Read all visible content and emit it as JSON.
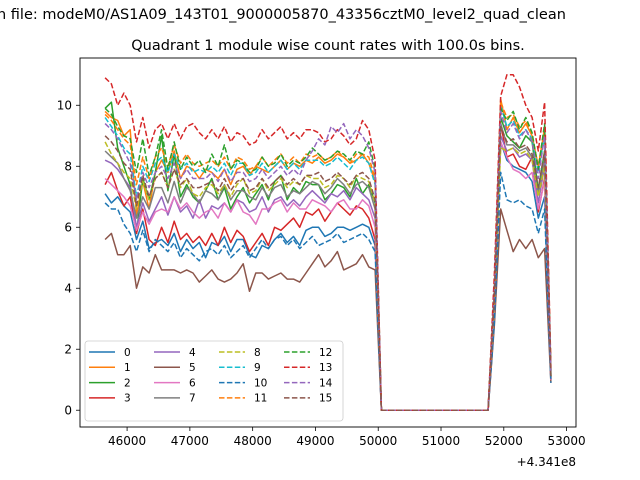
{
  "chart_data": {
    "type": "line",
    "suptitle": "n file: modeM0/AS1A09_143T01_9000005870_43356cztM0_level2_quad_clean",
    "title": "Quadrant 1 module wise count rates with 100.0s bins.",
    "xlabel": "",
    "ylabel": "",
    "x_offset_label": "+4.341e8",
    "xlim": [
      45250,
      53150
    ],
    "ylim": [
      -0.55,
      11.55
    ],
    "x_ticks": [
      46000,
      47000,
      48000,
      49000,
      50000,
      51000,
      52000,
      53000
    ],
    "y_ticks": [
      0,
      2,
      4,
      6,
      8,
      10
    ],
    "legend_loc": "lower-left",
    "legend_ncol": 4,
    "x": [
      45650,
      45750,
      45850,
      45950,
      46050,
      46150,
      46250,
      46350,
      46450,
      46550,
      46650,
      46750,
      46850,
      46950,
      47050,
      47150,
      47250,
      47350,
      47450,
      47550,
      47650,
      47750,
      47850,
      47950,
      48050,
      48150,
      48250,
      48350,
      48450,
      48550,
      48650,
      48750,
      48850,
      48950,
      49050,
      49150,
      49250,
      49350,
      49450,
      49550,
      49650,
      49750,
      49850,
      49950,
      50050,
      50150,
      51750,
      51850,
      51950,
      52050,
      52150,
      52250,
      52350,
      52450,
      52550,
      52650,
      52750
    ],
    "series": [
      {
        "name": "0",
        "color": "#1f77b4",
        "dash": "solid",
        "values": [
          7.1,
          6.8,
          7.0,
          6.7,
          6.5,
          5.6,
          6.2,
          5.3,
          5.5,
          5.6,
          5.4,
          5.8,
          5.2,
          5.6,
          5.3,
          5.5,
          5.0,
          5.5,
          5.4,
          5.7,
          5.2,
          5.6,
          5.6,
          5.1,
          5.0,
          5.4,
          5.3,
          5.6,
          5.8,
          5.5,
          5.7,
          5.4,
          5.9,
          6.0,
          6.0,
          5.7,
          5.8,
          6.0,
          6.0,
          5.9,
          6.0,
          6.1,
          6.0,
          5.4,
          0.0,
          0.0,
          0.0,
          3.0,
          8.8,
          8.2,
          8.0,
          7.9,
          7.8,
          7.5,
          6.3,
          7.0,
          1.0
        ]
      },
      {
        "name": "1",
        "color": "#ff7f0e",
        "dash": "solid",
        "values": [
          9.8,
          9.6,
          9.5,
          9.0,
          9.2,
          6.4,
          7.5,
          6.6,
          7.8,
          8.2,
          7.8,
          8.5,
          7.6,
          8.0,
          7.9,
          7.6,
          7.9,
          7.8,
          7.6,
          7.9,
          7.4,
          7.9,
          8.0,
          7.7,
          8.0,
          7.9,
          7.8,
          8.0,
          8.2,
          7.9,
          8.1,
          8.0,
          8.2,
          8.1,
          8.3,
          8.1,
          8.2,
          8.4,
          8.3,
          8.1,
          8.2,
          8.4,
          8.1,
          7.5,
          0.0,
          0.0,
          0.0,
          4.0,
          10.2,
          9.2,
          9.6,
          9.1,
          9.4,
          9.0,
          8.0,
          9.2,
          1.3
        ]
      },
      {
        "name": "2",
        "color": "#2ca02c",
        "dash": "solid",
        "values": [
          9.9,
          10.1,
          8.6,
          8.0,
          7.4,
          5.8,
          7.6,
          6.9,
          7.8,
          9.0,
          7.2,
          8.4,
          7.0,
          7.4,
          7.0,
          6.8,
          7.2,
          7.6,
          6.9,
          7.3,
          6.6,
          7.0,
          7.3,
          6.8,
          7.1,
          7.4,
          6.9,
          7.5,
          7.7,
          6.9,
          7.3,
          7.1,
          7.5,
          7.4,
          7.4,
          6.9,
          7.1,
          7.4,
          7.3,
          7.0,
          7.6,
          7.1,
          7.4,
          6.8,
          0.0,
          0.0,
          0.0,
          3.5,
          9.6,
          9.0,
          8.8,
          8.6,
          9.0,
          8.8,
          7.2,
          8.5,
          1.1
        ]
      },
      {
        "name": "3",
        "color": "#d62728",
        "dash": "solid",
        "values": [
          7.4,
          7.8,
          7.2,
          6.7,
          7.0,
          5.8,
          6.6,
          5.6,
          5.4,
          6.0,
          5.5,
          6.2,
          5.6,
          5.8,
          5.5,
          5.7,
          5.4,
          5.8,
          5.4,
          6.0,
          5.5,
          5.9,
          5.7,
          5.2,
          5.5,
          5.8,
          5.4,
          6.0,
          5.9,
          6.1,
          6.3,
          6.0,
          6.5,
          6.4,
          6.6,
          6.2,
          6.5,
          6.8,
          6.6,
          6.4,
          6.7,
          6.6,
          6.3,
          5.6,
          0.0,
          0.0,
          0.0,
          3.2,
          9.4,
          8.3,
          8.4,
          8.0,
          7.9,
          8.3,
          6.5,
          7.6,
          1.0
        ]
      },
      {
        "name": "4",
        "color": "#9467bd",
        "dash": "solid",
        "values": [
          8.2,
          8.1,
          7.9,
          7.6,
          7.3,
          6.0,
          6.8,
          6.2,
          6.6,
          7.0,
          6.4,
          7.0,
          6.5,
          6.7,
          6.3,
          6.9,
          6.3,
          6.7,
          6.6,
          6.8,
          6.5,
          6.9,
          6.8,
          6.5,
          6.6,
          7.0,
          6.5,
          6.9,
          7.0,
          6.7,
          6.9,
          6.7,
          7.0,
          7.2,
          7.0,
          6.8,
          7.1,
          7.0,
          7.2,
          6.9,
          7.3,
          7.1,
          6.9,
          6.3,
          0.0,
          0.0,
          0.0,
          3.4,
          9.0,
          8.5,
          8.6,
          8.3,
          8.4,
          8.2,
          6.8,
          8.0,
          1.0
        ]
      },
      {
        "name": "5",
        "color": "#8c564b",
        "dash": "solid",
        "values": [
          5.6,
          5.8,
          5.1,
          5.1,
          5.4,
          4.0,
          4.7,
          4.5,
          5.1,
          4.6,
          4.6,
          4.6,
          4.5,
          4.6,
          4.5,
          4.2,
          4.4,
          4.6,
          4.3,
          4.2,
          4.3,
          4.5,
          4.8,
          3.9,
          4.5,
          4.5,
          4.3,
          4.4,
          4.5,
          4.3,
          4.3,
          4.2,
          4.5,
          4.8,
          5.1,
          4.7,
          4.9,
          5.2,
          4.6,
          4.7,
          4.8,
          5.1,
          4.7,
          4.6,
          0.0,
          0.0,
          0.0,
          2.8,
          6.6,
          5.9,
          5.2,
          5.6,
          5.3,
          5.6,
          5.0,
          5.3,
          0.9
        ]
      },
      {
        "name": "6",
        "color": "#e377c2",
        "dash": "solid",
        "values": [
          7.6,
          7.4,
          7.2,
          7.0,
          6.7,
          5.9,
          6.5,
          6.1,
          6.5,
          6.6,
          6.5,
          7.0,
          6.6,
          6.8,
          6.5,
          6.3,
          6.5,
          6.6,
          6.3,
          6.8,
          6.5,
          6.9,
          6.5,
          6.4,
          6.1,
          6.6,
          6.6,
          6.8,
          6.9,
          6.5,
          6.8,
          6.6,
          6.6,
          6.9,
          6.8,
          6.7,
          6.5,
          6.8,
          6.9,
          6.6,
          6.6,
          6.9,
          6.7,
          6.0,
          0.0,
          0.0,
          0.0,
          3.3,
          8.8,
          8.3,
          7.9,
          7.8,
          7.6,
          7.8,
          6.6,
          7.5,
          1.0
        ]
      },
      {
        "name": "7",
        "color": "#7f7f7f",
        "dash": "solid",
        "values": [
          8.5,
          8.3,
          8.1,
          7.6,
          7.2,
          6.3,
          7.0,
          6.6,
          7.3,
          7.3,
          6.8,
          7.5,
          6.8,
          7.3,
          7.1,
          6.8,
          7.2,
          7.1,
          6.9,
          7.4,
          6.9,
          7.2,
          7.2,
          7.0,
          6.9,
          7.3,
          7.0,
          7.3,
          7.4,
          7.0,
          7.2,
          7.1,
          7.3,
          7.5,
          7.4,
          7.1,
          7.3,
          7.6,
          7.4,
          7.1,
          7.4,
          7.5,
          7.3,
          6.6,
          0.0,
          0.0,
          0.0,
          3.5,
          9.4,
          8.7,
          8.7,
          8.5,
          8.6,
          8.3,
          7.1,
          8.2,
          1.1
        ]
      },
      {
        "name": "8",
        "color": "#bcbd22",
        "dash": "dashed",
        "values": [
          8.8,
          8.4,
          8.1,
          7.8,
          7.6,
          6.6,
          7.5,
          6.9,
          7.6,
          7.8,
          7.3,
          7.9,
          7.3,
          7.6,
          7.1,
          7.0,
          7.3,
          7.4,
          7.1,
          7.4,
          7.0,
          7.4,
          7.6,
          7.1,
          7.2,
          7.6,
          7.2,
          7.4,
          7.6,
          7.3,
          7.5,
          7.4,
          7.7,
          7.6,
          7.6,
          7.3,
          7.4,
          7.7,
          7.6,
          7.3,
          7.7,
          7.6,
          7.5,
          6.8,
          0.0,
          0.0,
          0.0,
          3.6,
          8.6,
          8.5,
          8.6,
          8.4,
          8.5,
          8.2,
          7.0,
          8.0,
          1.1
        ]
      },
      {
        "name": "9",
        "color": "#17becf",
        "dash": "dashed",
        "values": [
          9.6,
          9.3,
          9.0,
          8.6,
          8.4,
          7.0,
          8.0,
          7.5,
          8.1,
          8.3,
          7.8,
          8.4,
          7.9,
          8.1,
          7.8,
          7.9,
          7.8,
          8.0,
          7.8,
          8.1,
          7.7,
          8.1,
          8.1,
          7.7,
          7.8,
          8.1,
          7.8,
          8.0,
          8.2,
          7.9,
          8.1,
          7.9,
          8.2,
          8.2,
          8.2,
          8.0,
          8.1,
          8.3,
          8.1,
          7.9,
          8.2,
          8.3,
          8.1,
          7.4,
          0.0,
          0.0,
          0.0,
          3.9,
          10.0,
          9.3,
          9.5,
          9.0,
          9.2,
          8.9,
          7.8,
          9.0,
          1.2
        ]
      },
      {
        "name": "10",
        "color": "#1f77b4",
        "dash": "dashed",
        "values": [
          6.8,
          6.6,
          6.6,
          6.1,
          5.8,
          5.2,
          5.9,
          5.2,
          5.6,
          5.4,
          5.2,
          5.5,
          5.0,
          5.3,
          5.1,
          4.9,
          5.2,
          5.3,
          5.1,
          5.4,
          5.0,
          5.2,
          5.4,
          5.0,
          5.3,
          5.6,
          5.3,
          5.6,
          5.7,
          5.4,
          5.6,
          5.3,
          5.5,
          5.7,
          5.4,
          5.5,
          5.6,
          5.8,
          5.5,
          5.6,
          5.7,
          5.8,
          5.6,
          5.2,
          0.0,
          0.0,
          0.0,
          2.9,
          7.8,
          6.9,
          6.8,
          6.9,
          6.7,
          6.6,
          5.8,
          6.6,
          0.9
        ]
      },
      {
        "name": "11",
        "color": "#ff7f0e",
        "dash": "dashed",
        "values": [
          9.7,
          9.5,
          9.2,
          8.9,
          8.7,
          7.4,
          8.3,
          7.6,
          8.3,
          8.6,
          8.0,
          8.7,
          8.1,
          8.4,
          8.1,
          8.0,
          8.1,
          8.2,
          8.0,
          8.3,
          7.9,
          8.3,
          8.2,
          7.9,
          8.0,
          8.3,
          8.0,
          8.2,
          8.4,
          8.1,
          8.3,
          8.1,
          8.4,
          8.3,
          8.4,
          8.2,
          8.3,
          8.5,
          8.3,
          8.1,
          8.4,
          8.4,
          8.3,
          7.6,
          0.0,
          0.0,
          0.0,
          4.0,
          10.1,
          9.6,
          9.7,
          9.3,
          9.5,
          9.0,
          8.0,
          9.3,
          1.3
        ]
      },
      {
        "name": "12",
        "color": "#2ca02c",
        "dash": "dashed",
        "values": [
          9.9,
          9.7,
          9.3,
          9.0,
          8.9,
          7.8,
          8.9,
          7.7,
          8.3,
          9.2,
          7.9,
          8.8,
          7.9,
          8.3,
          8.0,
          8.2,
          7.8,
          8.4,
          8.0,
          8.7,
          7.9,
          8.2,
          8.1,
          7.8,
          7.9,
          8.3,
          8.0,
          8.1,
          8.4,
          8.0,
          8.2,
          8.1,
          8.3,
          8.6,
          8.4,
          8.2,
          8.3,
          8.5,
          8.4,
          8.2,
          8.5,
          8.4,
          8.8,
          7.9,
          0.0,
          0.0,
          0.0,
          4.2,
          9.9,
          9.5,
          9.8,
          9.2,
          9.6,
          9.1,
          7.9,
          9.4,
          1.3
        ]
      },
      {
        "name": "13",
        "color": "#d62728",
        "dash": "dashed",
        "values": [
          10.9,
          10.7,
          10.0,
          10.4,
          10.0,
          8.8,
          9.6,
          8.6,
          9.2,
          9.4,
          8.9,
          9.4,
          8.9,
          9.3,
          9.4,
          9.1,
          8.9,
          9.2,
          8.9,
          9.3,
          8.8,
          9.1,
          9.0,
          8.7,
          8.8,
          9.2,
          8.9,
          9.1,
          9.3,
          8.9,
          9.1,
          8.9,
          9.2,
          9.2,
          9.1,
          8.8,
          8.9,
          9.2,
          9.0,
          8.7,
          8.9,
          9.5,
          9.2,
          8.2,
          0.0,
          0.0,
          0.0,
          4.5,
          10.3,
          11.0,
          11.0,
          10.6,
          10.0,
          9.6,
          8.5,
          10.1,
          1.4
        ]
      },
      {
        "name": "14",
        "color": "#9467bd",
        "dash": "dashed",
        "values": [
          9.4,
          9.2,
          8.9,
          8.5,
          8.1,
          6.9,
          7.8,
          7.3,
          7.8,
          8.0,
          7.6,
          8.1,
          7.6,
          7.9,
          7.6,
          7.6,
          7.6,
          7.8,
          7.5,
          7.9,
          7.5,
          7.8,
          7.8,
          7.5,
          7.6,
          7.9,
          7.6,
          7.8,
          8.0,
          7.7,
          7.9,
          7.7,
          8.2,
          8.5,
          8.9,
          8.7,
          9.3,
          9.1,
          9.4,
          8.9,
          9.2,
          9.0,
          8.6,
          7.8,
          0.0,
          0.0,
          0.0,
          3.9,
          9.8,
          9.1,
          9.4,
          8.9,
          9.2,
          8.8,
          7.6,
          9.0,
          1.2
        ]
      },
      {
        "name": "15",
        "color": "#8c564b",
        "dash": "dashed",
        "values": [
          9.0,
          8.8,
          8.5,
          8.1,
          7.9,
          6.7,
          7.7,
          7.0,
          7.6,
          7.8,
          7.3,
          7.9,
          7.4,
          7.6,
          7.3,
          7.3,
          7.4,
          7.5,
          7.2,
          7.6,
          7.2,
          7.5,
          7.6,
          7.2,
          7.3,
          7.6,
          7.3,
          7.5,
          7.7,
          7.4,
          7.6,
          7.4,
          7.7,
          7.7,
          7.8,
          7.5,
          7.6,
          7.8,
          7.6,
          7.4,
          7.7,
          7.8,
          7.6,
          6.9,
          0.0,
          0.0,
          0.0,
          3.7,
          9.3,
          8.8,
          8.9,
          8.6,
          8.7,
          8.4,
          7.3,
          8.5,
          1.1
        ]
      }
    ]
  }
}
